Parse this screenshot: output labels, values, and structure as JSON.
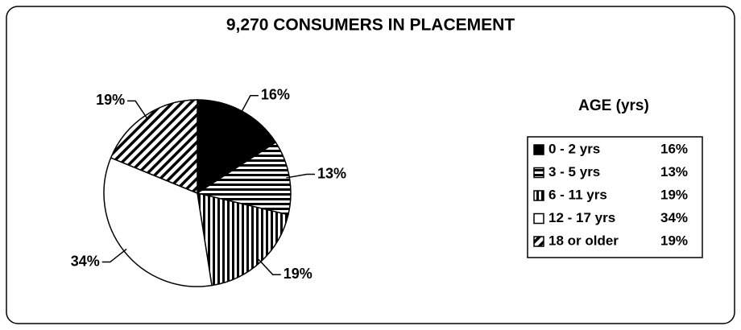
{
  "chart_data": {
    "type": "pie",
    "title": "9,270 CONSUMERS IN PLACEMENT",
    "legend_title": "AGE (yrs)",
    "categories": [
      "0 - 2 yrs",
      "3 - 5 yrs",
      "6 - 11 yrs",
      "12 - 17 yrs",
      "18 or older"
    ],
    "values": [
      16,
      13,
      19,
      34,
      19
    ],
    "value_labels": [
      "16%",
      "13%",
      "19%",
      "34%",
      "19%"
    ],
    "patterns": [
      "solid",
      "horizontal",
      "vertical",
      "none",
      "diagonal"
    ],
    "legend": "right"
  }
}
